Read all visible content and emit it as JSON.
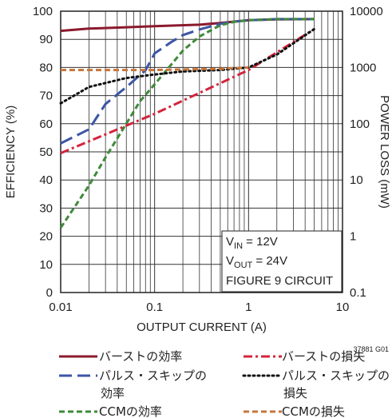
{
  "chart_data": {
    "type": "line",
    "xlabel": "OUTPUT CURRENT (A)",
    "ylabel": "EFFICIENCY (%)",
    "y2label": "POWER LOSS (mW)",
    "x_scale": "log",
    "xlim": [
      0.01,
      10
    ],
    "ylim": [
      0,
      100
    ],
    "y2_scale": "log",
    "y2lim": [
      0.1,
      10000
    ],
    "grid": true,
    "x_ticks": [
      "0.01",
      "0.1",
      "1",
      "10"
    ],
    "y_ticks": [
      "0",
      "10",
      "20",
      "30",
      "40",
      "50",
      "60",
      "70",
      "80",
      "90",
      "100"
    ],
    "y2_ticks": [
      "0.1",
      "1",
      "10",
      "100",
      "1000",
      "10000"
    ],
    "annotation": {
      "line1_main": "V",
      "line1_sub": "IN",
      "line1_rest": " = 12V",
      "line2_main": "V",
      "line2_sub": "OUT",
      "line2_rest": " = 24V",
      "line3": "FIGURE 9 CIRCUIT"
    },
    "figure_id": "37881 G01",
    "series": [
      {
        "name": "バーストの効率",
        "axis": "left",
        "color": "#8b1a2e",
        "dash": "solid",
        "x": [
          0.01,
          0.02,
          0.05,
          0.1,
          0.3,
          0.5,
          1,
          2,
          5
        ],
        "y": [
          93,
          93.8,
          94.3,
          94.7,
          95.2,
          95.8,
          96.8,
          97.1,
          97.2
        ]
      },
      {
        "name": "パルス・スキップの効率",
        "axis": "left",
        "color": "#3c55a5",
        "dash": "longdash",
        "x": [
          0.01,
          0.02,
          0.03,
          0.05,
          0.08,
          0.1,
          0.15,
          0.2,
          0.3,
          0.5,
          0.7,
          1,
          2,
          3,
          5
        ],
        "y": [
          53,
          58,
          67,
          73,
          79,
          85,
          89,
          91.5,
          93.5,
          95.5,
          96.3,
          96.8,
          97.2,
          97.2,
          97.2
        ]
      },
      {
        "name": "CCMの効率",
        "axis": "left",
        "color": "#3f8a3a",
        "dash": "shortdash",
        "x": [
          0.01,
          0.02,
          0.03,
          0.05,
          0.07,
          0.1,
          0.15,
          0.2,
          0.3,
          0.5,
          0.7,
          1,
          2,
          5
        ],
        "y": [
          23,
          38,
          48,
          60,
          68,
          74,
          81,
          86,
          91,
          95,
          96.2,
          96.8,
          97.2,
          97.2
        ]
      },
      {
        "name": "バーストの損失",
        "axis": "right",
        "color": "#d4243c",
        "dash": "dashdot",
        "x": [
          0.01,
          0.1,
          1,
          5
        ],
        "y": [
          30,
          150,
          900,
          4800
        ]
      },
      {
        "name": "パルス・スキップの損失",
        "axis": "right",
        "color": "#111111",
        "dash": "dotted",
        "x": [
          0.01,
          0.02,
          0.05,
          0.1,
          0.2,
          0.5,
          1,
          2,
          5
        ],
        "y": [
          230,
          450,
          650,
          750,
          850,
          900,
          1000,
          1700,
          4800
        ]
      },
      {
        "name": "CCMの損失",
        "axis": "right",
        "color": "#c8763a",
        "dash": "shortdash",
        "x": [
          0.01,
          0.1,
          0.5,
          1
        ],
        "y": [
          900,
          900,
          950,
          1000
        ]
      }
    ],
    "legend": {
      "placement": "bottom",
      "col1": [
        {
          "series": 0,
          "lines": [
            "バーストの効率"
          ]
        },
        {
          "series": 1,
          "lines": [
            "パルス・スキップの",
            "効率"
          ]
        },
        {
          "series": 2,
          "lines": [
            "CCMの効率"
          ]
        }
      ],
      "col2": [
        {
          "series": 3,
          "lines": [
            "バーストの損失"
          ]
        },
        {
          "series": 4,
          "lines": [
            "パルス・スキップの",
            "損失"
          ]
        },
        {
          "series": 5,
          "lines": [
            "CCMの損失"
          ]
        }
      ]
    }
  }
}
